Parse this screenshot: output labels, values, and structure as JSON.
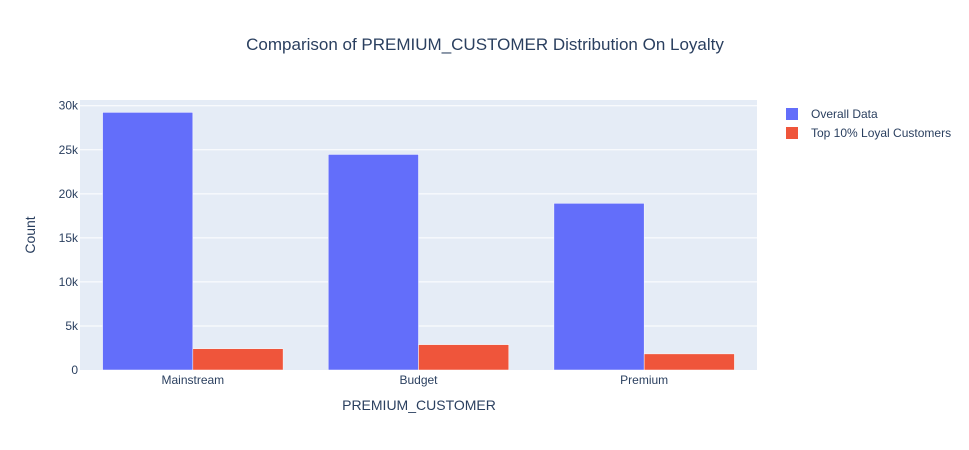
{
  "chart_data": {
    "type": "bar",
    "title": "Comparison of PREMIUM_CUSTOMER Distribution On Loyalty",
    "xlabel": "PREMIUM_CUSTOMER",
    "ylabel": "Count",
    "categories": [
      "Mainstream",
      "Budget",
      "Premium"
    ],
    "series": [
      {
        "name": "Overall Data",
        "values": [
          29245,
          24470,
          18922
        ],
        "color": "#636efa"
      },
      {
        "name": "Top 10% Loyal Customers",
        "values": [
          2420,
          2880,
          1830
        ],
        "color": "#ef553b"
      }
    ],
    "ylim": [
      0,
      30650
    ],
    "yticks": [
      0,
      5000,
      10000,
      15000,
      20000,
      25000,
      30000
    ],
    "ytick_labels": [
      "0",
      "5k",
      "10k",
      "15k",
      "20k",
      "25k",
      "30k"
    ],
    "grid": true,
    "legend_position": "top-right",
    "plot_background": "#e5ecf6"
  }
}
